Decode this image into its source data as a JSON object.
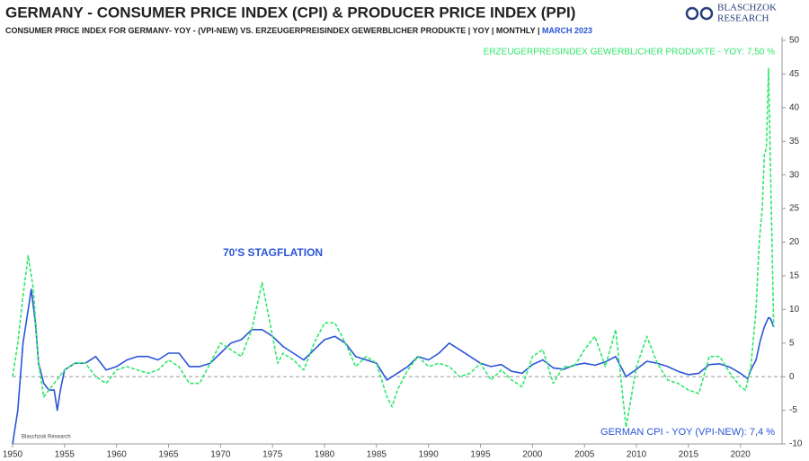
{
  "chart_data": {
    "type": "line",
    "title": "GERMANY - CONSUMER PRICE INDEX (CPI) & PRODUCER PRICE INDEX (PPI)",
    "subtitle": "CONSUMER PRICE INDEX FOR GERMANY- YOY - (VPI-NEW) VS. ERZEUGERPREISINDEX GEWERBLICHER PRODUKTE  | YOY | MONTHLY |",
    "subtitle_date": "MARCH 2023",
    "logo": [
      "BLASCHZOK",
      "RESEARCH"
    ],
    "watermark": "Blaschzok Research",
    "annotations": [
      "70'S STAGFLATION",
      "ERZEUGERPREISINDEX GEWERBLICHER PRODUKTE - YOY: 7,50 %",
      "GERMAN CPI - YOY (VPI-NEW): 7,4 %"
    ],
    "xlim": [
      1950,
      2024
    ],
    "xticks": [
      1950,
      1955,
      1960,
      1965,
      1970,
      1975,
      1980,
      1985,
      1990,
      1995,
      2000,
      2005,
      2010,
      2015,
      2020
    ],
    "ylim": [
      -10,
      50
    ],
    "yticks": [
      -10,
      -5,
      0,
      5,
      10,
      15,
      20,
      25,
      30,
      35,
      40,
      45,
      50
    ],
    "grid": false,
    "series": [
      {
        "name": "German CPI",
        "color": "#2a55d8",
        "dash": false,
        "x": [
          1950,
          1950.5,
          1951,
          1951.5,
          1951.8,
          1952.2,
          1952.5,
          1953,
          1953.5,
          1954,
          1954.3,
          1954.6,
          1955,
          1956,
          1957,
          1958,
          1959,
          1960,
          1961,
          1962,
          1963,
          1964,
          1965,
          1966,
          1967,
          1968,
          1969,
          1970,
          1971,
          1972,
          1973,
          1974,
          1975,
          1976,
          1977,
          1978,
          1979,
          1980,
          1981,
          1982,
          1983,
          1984,
          1985,
          1986,
          1987,
          1988,
          1989,
          1990,
          1991,
          1992,
          1993,
          1994,
          1995,
          1996,
          1997,
          1998,
          1999,
          2000,
          2001,
          2002,
          2003,
          2004,
          2005,
          2006,
          2007,
          2008,
          2009,
          2010,
          2011,
          2012,
          2013,
          2014,
          2015,
          2016,
          2017,
          2018,
          2019,
          2020,
          2020.7,
          2021,
          2021.5,
          2021.9,
          2022.3,
          2022.7,
          2022.9,
          2023.2
        ],
        "values": [
          -10,
          -5,
          5,
          10,
          13,
          8,
          2,
          -1,
          -2,
          -2,
          -5,
          -2,
          1,
          2,
          2,
          3,
          1,
          1.5,
          2.5,
          3,
          3,
          2.5,
          3.5,
          3.5,
          1.5,
          1.5,
          2,
          3.5,
          5,
          5.5,
          7,
          7,
          6,
          4.5,
          3.5,
          2.5,
          4,
          5.5,
          6,
          5,
          3,
          2.5,
          2,
          -0.5,
          0.5,
          1.5,
          3,
          2.5,
          3.5,
          5,
          4,
          3,
          2,
          1.5,
          1.8,
          0.8,
          0.5,
          1.8,
          2.5,
          1.3,
          1.1,
          1.7,
          2,
          1.7,
          2.2,
          3,
          0,
          1.1,
          2.3,
          2,
          1.5,
          0.8,
          0.3,
          0.5,
          1.8,
          1.9,
          1.4,
          0.5,
          -0.3,
          1,
          2.5,
          5.3,
          7.4,
          8.8,
          8.6,
          7.4
        ]
      },
      {
        "name": "Erzeugerpreisindex",
        "color": "#2ee86a",
        "dash": true,
        "x": [
          1950,
          1950.5,
          1951,
          1951.5,
          1952,
          1952.5,
          1953,
          1954,
          1955,
          1956,
          1957,
          1958,
          1959,
          1960,
          1961,
          1962,
          1963,
          1964,
          1965,
          1966,
          1967,
          1968,
          1969,
          1970,
          1971,
          1972,
          1973,
          1974,
          1975,
          1975.5,
          1976,
          1977,
          1978,
          1979,
          1980,
          1981,
          1982,
          1983,
          1984,
          1985,
          1986,
          1986.5,
          1987,
          1988,
          1989,
          1990,
          1991,
          1992,
          1993,
          1994,
          1995,
          1996,
          1997,
          1998,
          1999,
          2000,
          2001,
          2002,
          2003,
          2004,
          2005,
          2006,
          2007,
          2008,
          2009,
          2010,
          2011,
          2012,
          2013,
          2014,
          2015,
          2016,
          2017,
          2018,
          2019,
          2020,
          2020.5,
          2021,
          2021.5,
          2021.8,
          2022.1,
          2022.3,
          2022.5,
          2022.7,
          2022.9,
          2023.1,
          2023.2
        ],
        "values": [
          0,
          5,
          12,
          18,
          13,
          2,
          -3,
          -1,
          1,
          2,
          2,
          0,
          -1,
          1,
          1.5,
          1,
          0.5,
          1,
          2.5,
          1.5,
          -1,
          -1,
          2,
          5,
          4,
          3,
          7,
          14,
          6,
          2,
          3.5,
          2.5,
          1,
          5,
          8,
          8,
          5,
          1.5,
          3,
          2,
          -3,
          -4.5,
          -2,
          1,
          3,
          1.5,
          2,
          1.5,
          0,
          0.5,
          2,
          -0.5,
          1,
          -0.5,
          -1.5,
          3,
          4,
          -1,
          1.5,
          1.5,
          4,
          6,
          1.5,
          7,
          -7.5,
          1.5,
          6,
          2,
          -0.5,
          -1,
          -2,
          -2.5,
          3,
          3,
          0.5,
          -1.5,
          -2,
          1.5,
          10,
          20,
          25,
          33,
          34,
          45.8,
          30,
          15,
          7.5
        ]
      }
    ]
  }
}
